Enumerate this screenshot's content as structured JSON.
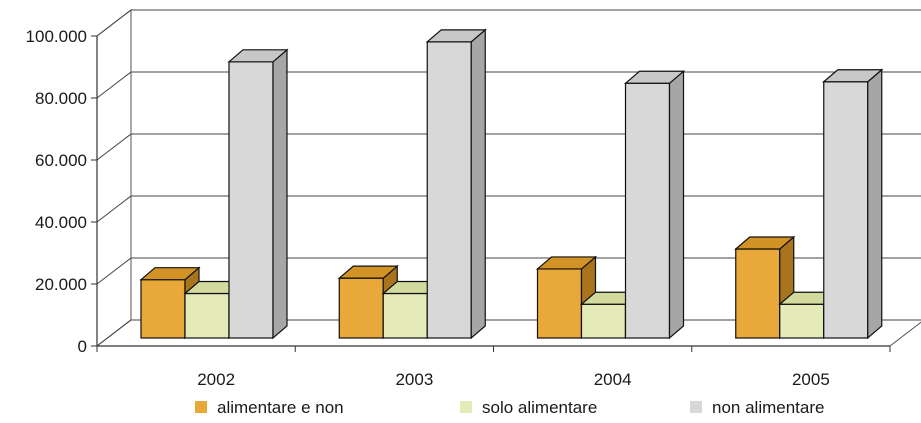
{
  "chart_data": {
    "type": "bar",
    "title": "",
    "xlabel": "",
    "ylabel": "",
    "categories": [
      "2002",
      "2003",
      "2004",
      "2005"
    ],
    "yticks": [
      "0",
      "20.000",
      "40.000",
      "60.000",
      "80.000",
      "100.000"
    ],
    "ytick_values": [
      0,
      20000,
      40000,
      60000,
      80000,
      100000
    ],
    "ylim": [
      0,
      100000
    ],
    "grid": true,
    "legend_position": "bottom",
    "series": [
      {
        "name": "alimentare e non",
        "values": [
          19000,
          19500,
          22500,
          29000
        ],
        "color": "#e8a83a",
        "side_color": "#a8741c",
        "top_color": "#d39225"
      },
      {
        "name": "solo alimentare",
        "values": [
          14500,
          14500,
          11000,
          11000
        ],
        "color": "#e4eab8",
        "side_color": "#b9c08a",
        "top_color": "#d3da9e"
      },
      {
        "name": "non alimentare",
        "values": [
          90000,
          96500,
          83000,
          83500
        ],
        "color": "#d8d8d8",
        "side_color": "#a6a6a6",
        "top_color": "#c7c7c7"
      }
    ]
  }
}
